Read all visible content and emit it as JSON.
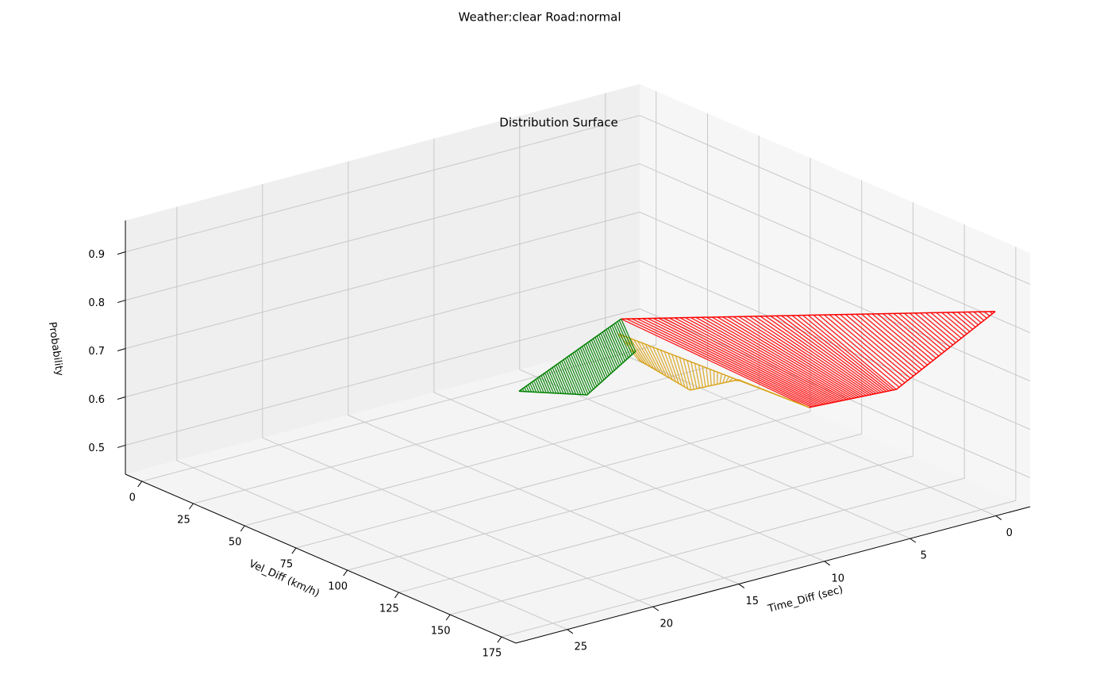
{
  "chart_data": {
    "type": "surface3d",
    "suptitle": "Weather:clear Road:normal",
    "title": "Distribution Surface",
    "x_label": "Vel_Diff (km/h)",
    "y_label": "Time_Diff (sec)",
    "z_label": "Probability",
    "xlim": [
      -8,
      182
    ],
    "ylim": [
      -2,
      28
    ],
    "zlim": [
      0.44,
      0.965
    ],
    "xticks": [
      0,
      25,
      50,
      75,
      100,
      125,
      150,
      175
    ],
    "yticks": [
      0,
      5,
      10,
      15,
      20,
      25
    ],
    "zticks": [
      0.5,
      0.6,
      0.7,
      0.8,
      0.9
    ],
    "series": [
      {
        "color": "#ff0000",
        "top_edge": [
          [
            147.3,
            17.7,
            0.95
          ],
          [
            167.5,
            -1.7,
            0.82
          ]
        ],
        "bottom_edge": [
          [
            78.6,
            -1.5,
            0.46
          ],
          [
            129.4,
            -0.5,
            0.6
          ],
          [
            167.5,
            -1.7,
            0.82
          ]
        ]
      },
      {
        "color": "#daa520",
        "top_edge": [
          [
            123.6,
            15.0,
            0.85
          ],
          [
            78.6,
            -1.5,
            0.46
          ]
        ],
        "bottom_edge": [
          [
            13.9,
            0.7,
            0.46
          ],
          [
            74.9,
            5.0,
            0.55
          ],
          [
            93.4,
            4.4,
            0.6
          ],
          [
            78.6,
            -1.5,
            0.46
          ]
        ]
      },
      {
        "color": "#008000",
        "top_edge": [
          [
            147.3,
            17.7,
            0.95
          ],
          [
            60.9,
            13.3,
            0.6
          ]
        ],
        "bottom_edge": [
          [
            7.5,
            0.1,
            0.46
          ],
          [
            42.3,
            7.1,
            0.5
          ],
          [
            60.9,
            13.3,
            0.6
          ]
        ]
      }
    ]
  }
}
